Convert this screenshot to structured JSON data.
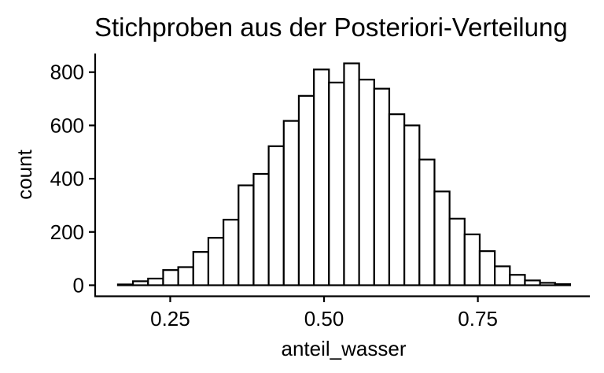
{
  "chart_data": {
    "type": "bar",
    "title": "Stichproben aus der Posteriori-Verteilung",
    "xlabel": "anteil_wasser",
    "ylabel": "count",
    "xlim": [
      0.128,
      0.932
    ],
    "ylim": [
      -40,
      870
    ],
    "xticks": [
      0.25,
      0.5,
      0.75
    ],
    "xtick_labels": [
      "0.25",
      "0.50",
      "0.75"
    ],
    "yticks": [
      0,
      200,
      400,
      600,
      800
    ],
    "ytick_labels": [
      "0",
      "200",
      "400",
      "600",
      "800"
    ],
    "bar_color": "#ffffff",
    "edge_color": "#000000",
    "bins": [
      {
        "x0": 0.165,
        "x1": 0.1895,
        "count": 3
      },
      {
        "x0": 0.1895,
        "x1": 0.214,
        "count": 15
      },
      {
        "x0": 0.214,
        "x1": 0.2385,
        "count": 25
      },
      {
        "x0": 0.2385,
        "x1": 0.263,
        "count": 57
      },
      {
        "x0": 0.263,
        "x1": 0.2875,
        "count": 68
      },
      {
        "x0": 0.2875,
        "x1": 0.312,
        "count": 125
      },
      {
        "x0": 0.312,
        "x1": 0.3365,
        "count": 178
      },
      {
        "x0": 0.3365,
        "x1": 0.361,
        "count": 246
      },
      {
        "x0": 0.361,
        "x1": 0.3855,
        "count": 375
      },
      {
        "x0": 0.3855,
        "x1": 0.41,
        "count": 418
      },
      {
        "x0": 0.41,
        "x1": 0.4345,
        "count": 522
      },
      {
        "x0": 0.4345,
        "x1": 0.459,
        "count": 617
      },
      {
        "x0": 0.459,
        "x1": 0.4835,
        "count": 711
      },
      {
        "x0": 0.4835,
        "x1": 0.508,
        "count": 810
      },
      {
        "x0": 0.508,
        "x1": 0.5325,
        "count": 761
      },
      {
        "x0": 0.5325,
        "x1": 0.557,
        "count": 833
      },
      {
        "x0": 0.557,
        "x1": 0.5815,
        "count": 772
      },
      {
        "x0": 0.5815,
        "x1": 0.606,
        "count": 738
      },
      {
        "x0": 0.606,
        "x1": 0.6305,
        "count": 642
      },
      {
        "x0": 0.6305,
        "x1": 0.655,
        "count": 600
      },
      {
        "x0": 0.655,
        "x1": 0.6795,
        "count": 472
      },
      {
        "x0": 0.6795,
        "x1": 0.704,
        "count": 352
      },
      {
        "x0": 0.704,
        "x1": 0.7285,
        "count": 250
      },
      {
        "x0": 0.7285,
        "x1": 0.753,
        "count": 191
      },
      {
        "x0": 0.753,
        "x1": 0.7775,
        "count": 128
      },
      {
        "x0": 0.7775,
        "x1": 0.802,
        "count": 71
      },
      {
        "x0": 0.802,
        "x1": 0.8265,
        "count": 39
      },
      {
        "x0": 0.8265,
        "x1": 0.851,
        "count": 18
      },
      {
        "x0": 0.851,
        "x1": 0.8755,
        "count": 9
      },
      {
        "x0": 0.8755,
        "x1": 0.9,
        "count": 4
      }
    ]
  }
}
